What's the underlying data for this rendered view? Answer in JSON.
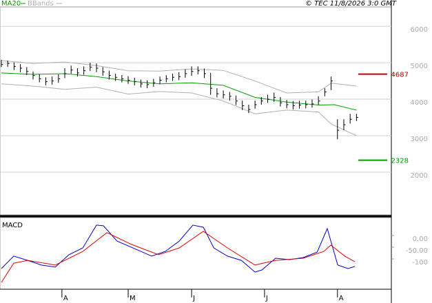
{
  "chart_data": [
    {
      "type": "ohlc",
      "legend": [
        "MA20",
        "BBands"
      ],
      "credit": "© TEC 11/8/2026 3:0 GMT",
      "x": [
        0,
        2,
        4,
        6,
        8,
        10,
        12,
        14,
        16,
        18,
        20,
        22,
        24,
        26,
        28,
        30,
        32,
        34,
        36,
        38,
        40,
        42,
        44,
        46,
        48,
        50,
        52,
        54,
        56,
        58,
        60,
        62,
        64,
        66,
        68,
        70,
        72,
        74,
        76,
        78,
        80,
        82,
        84,
        86,
        88,
        90,
        92,
        94,
        96,
        98,
        100,
        102,
        104,
        106,
        108,
        110,
        112
      ],
      "high": [
        5080,
        5060,
        5010,
        4960,
        4880,
        4760,
        4680,
        4600,
        4620,
        4680,
        4850,
        4920,
        4850,
        4900,
        5000,
        4980,
        4880,
        4780,
        4700,
        4660,
        4630,
        4590,
        4540,
        4520,
        4560,
        4620,
        4660,
        4700,
        4740,
        4820,
        4900,
        4900,
        4840,
        4720,
        4300,
        4240,
        4200,
        4100,
        3960,
        3850,
        3960,
        4060,
        4120,
        4180,
        4060,
        3980,
        3950,
        3960,
        3960,
        3990,
        4080,
        4300,
        4620,
        3450,
        3450,
        3600,
        3600
      ],
      "low": [
        4880,
        4890,
        4800,
        4740,
        4660,
        4540,
        4460,
        4380,
        4400,
        4450,
        4580,
        4700,
        4620,
        4670,
        4770,
        4740,
        4640,
        4540,
        4500,
        4460,
        4420,
        4380,
        4320,
        4300,
        4340,
        4410,
        4460,
        4500,
        4520,
        4590,
        4640,
        4680,
        4580,
        4120,
        4050,
        4020,
        3960,
        3840,
        3700,
        3620,
        3740,
        3850,
        3900,
        3930,
        3800,
        3750,
        3720,
        3740,
        3750,
        3770,
        3840,
        4080,
        4250,
        2900,
        3150,
        3330,
        3400
      ],
      "close": [
        4950,
        4980,
        4900,
        4850,
        4760,
        4650,
        4560,
        4480,
        4500,
        4560,
        4700,
        4800,
        4720,
        4780,
        4880,
        4850,
        4750,
        4650,
        4600,
        4560,
        4520,
        4480,
        4420,
        4400,
        4450,
        4520,
        4560,
        4600,
        4620,
        4700,
        4760,
        4780,
        4700,
        4300,
        4150,
        4120,
        4080,
        3950,
        3820,
        3720,
        3850,
        3950,
        4000,
        4050,
        3900,
        3850,
        3820,
        3840,
        3850,
        3870,
        3950,
        4200,
        4500,
        3150,
        3300,
        3450,
        3500
      ],
      "color": "#000000",
      "series": [
        {
          "name": "MA20",
          "color": "#00a000",
          "x": [
            0,
            10,
            20,
            30,
            40,
            50,
            60,
            70,
            80,
            90,
            100,
            105,
            112
          ],
          "values": [
            4720,
            4680,
            4700,
            4620,
            4500,
            4420,
            4450,
            4380,
            4050,
            3920,
            3840,
            3850,
            3700
          ]
        },
        {
          "name": "BBands",
          "color": "#b0b0b0",
          "x": [
            0,
            10,
            20,
            30,
            40,
            50,
            60,
            70,
            80,
            90,
            100,
            104,
            112
          ],
          "upper": [
            5060,
            4980,
            5020,
            4920,
            4780,
            4770,
            4830,
            4790,
            4500,
            4170,
            4200,
            4440,
            4360
          ],
          "lower": [
            4420,
            4360,
            4270,
            4330,
            4140,
            4210,
            4170,
            3950,
            3600,
            3700,
            3650,
            3320,
            3000
          ]
        }
      ],
      "levels": [
        {
          "value": 4687,
          "color": "#c00000"
        },
        {
          "value": 2328,
          "color": "#009900"
        }
      ],
      "xlim": [
        -0.43,
        123
      ],
      "ylim": [
        830,
        6530
      ],
      "yticks": [
        2000,
        3000,
        4000,
        5000,
        6000
      ],
      "grid": true
    },
    {
      "type": "line",
      "title": "MACD",
      "series": [
        {
          "color": "#0000cc",
          "x": [
            0,
            3.9,
            8.3,
            12.6,
            17,
            21.3,
            25.7,
            30,
            32.2,
            36.5,
            43,
            47.4,
            51.7,
            56.1,
            60.4,
            63.7,
            67,
            71.3,
            75.7,
            80,
            82.2,
            86.5,
            90.9,
            95.2,
            99.6,
            102.8,
            106.1,
            109.3,
            111.5
          ],
          "values": [
            -141,
            -88,
            -106,
            -126,
            -135,
            -82,
            -53,
            44,
            41,
            -24,
            -62,
            -88,
            -68,
            -24,
            44,
            35,
            -53,
            -88,
            -106,
            -156,
            -147,
            -97,
            -103,
            -94,
            -71,
            29,
            -126,
            -141,
            -132
          ]
        },
        {
          "color": "#dd0000",
          "x": [
            0,
            3.9,
            8.3,
            17,
            25.7,
            33.3,
            41,
            49.6,
            56.1,
            63.7,
            71.3,
            80,
            86.5,
            95.2,
            101.7,
            103.9,
            108.3,
            111.5
          ],
          "values": [
            -200,
            -118,
            -106,
            -126,
            -68,
            12,
            -38,
            -82,
            -53,
            18,
            -53,
            -126,
            -106,
            -97,
            -68,
            -41,
            -88,
            -112
          ]
        }
      ],
      "xlim": [
        -0.43,
        123
      ],
      "ylim": [
        -229,
        76
      ],
      "yticks": [
        {
          "value": 0,
          "label": "0.00"
        },
        {
          "value": -50,
          "label": "-50.00"
        },
        {
          "value": -100,
          "label": "-100"
        }
      ],
      "xticks": [
        {
          "value": 19.1,
          "label": "A"
        },
        {
          "value": 40,
          "label": "M"
        },
        {
          "value": 60,
          "label": "J"
        },
        {
          "value": 83,
          "label": "J"
        },
        {
          "value": 106,
          "label": "A"
        }
      ]
    }
  ]
}
